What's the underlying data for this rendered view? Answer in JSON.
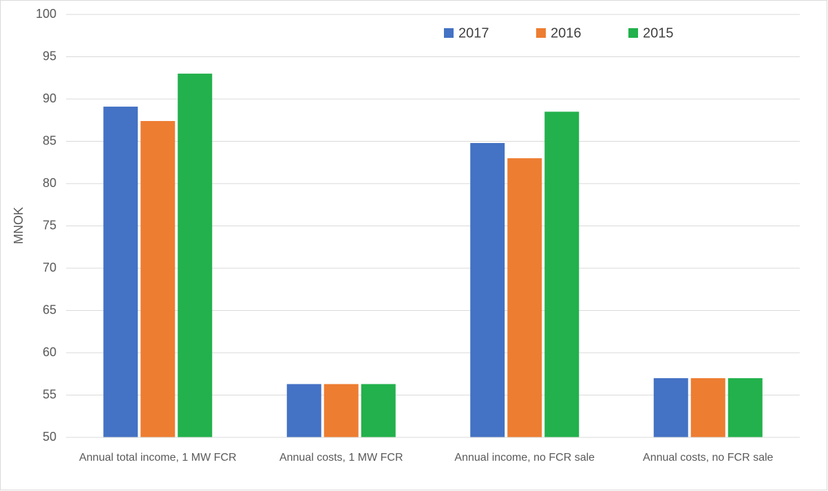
{
  "chart_data": {
    "type": "bar",
    "y_label": "MNOK",
    "categories": [
      "Annual total income, 1 MW FCR",
      "Annual costs, 1 MW FCR",
      "Annual income, no FCR sale",
      "Annual costs, no FCR sale"
    ],
    "series": [
      {
        "name": "2017",
        "color": "#4472c4",
        "values": [
          89.1,
          56.3,
          84.8,
          57.0
        ]
      },
      {
        "name": "2016",
        "color": "#ed7d31",
        "values": [
          87.4,
          56.3,
          83.0,
          57.0
        ]
      },
      {
        "name": "2015",
        "color": "#22b14c",
        "values": [
          93.0,
          56.3,
          88.5,
          57.0
        ]
      }
    ],
    "ylim": [
      50,
      100
    ],
    "yticks": [
      50,
      55,
      60,
      65,
      70,
      75,
      80,
      85,
      90,
      95,
      100
    ],
    "grid": true,
    "legend": "top"
  }
}
